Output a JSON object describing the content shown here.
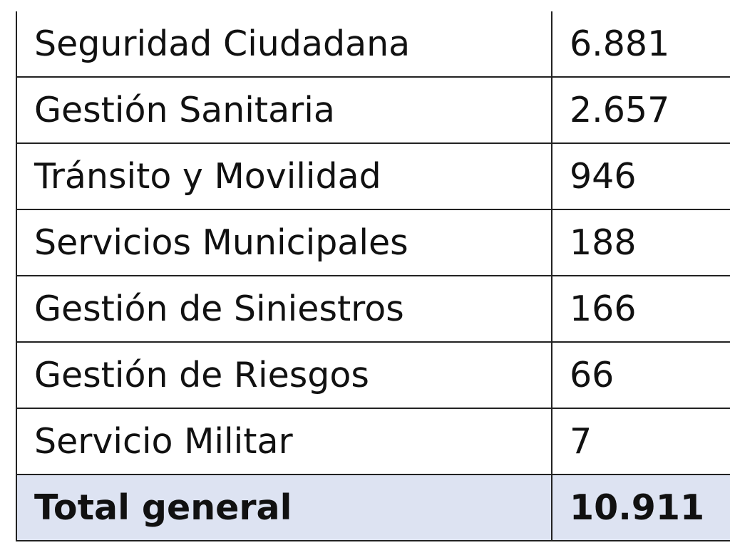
{
  "table": {
    "rows": [
      {
        "label": "Seguridad Ciudadana",
        "value": "6.881"
      },
      {
        "label": "Gestión Sanitaria",
        "value": "2.657"
      },
      {
        "label": "Tránsito y Movilidad",
        "value": "946"
      },
      {
        "label": "Servicios Municipales",
        "value": "188"
      },
      {
        "label": "Gestión de Siniestros",
        "value": "166"
      },
      {
        "label": "Gestión de Riesgos",
        "value": "66"
      },
      {
        "label": "Servicio Militar",
        "value": "7"
      }
    ],
    "total": {
      "label": "Total general",
      "value": "10.911"
    }
  },
  "colors": {
    "total_row_background": "#dde3f2",
    "border": "#222222",
    "text": "#111111"
  }
}
